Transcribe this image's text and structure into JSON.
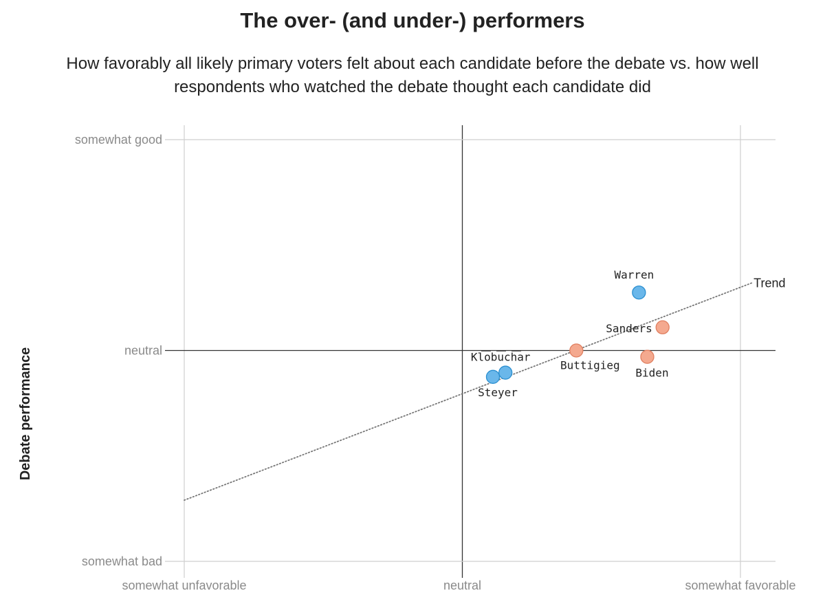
{
  "title": "The over- (and under-) performers",
  "subtitle": "How favorably all likely primary voters felt about each candidate before the debate vs. how well respondents who watched the debate thought each candidate did",
  "chart_data": {
    "type": "scatter",
    "title": "The over- (and under-) performers",
    "subtitle": "How favorably all likely primary voters felt about each candidate before the debate vs. how well respondents who watched the debate thought each candidate did",
    "xlabel": "",
    "ylabel": "Debate performance",
    "xlim": [
      -1.02,
      1.13
    ],
    "ylim": [
      -1.0,
      1.07
    ],
    "x_ticks": [
      {
        "value": -1,
        "label": "somewhat unfavorable"
      },
      {
        "value": 0,
        "label": "neutral"
      },
      {
        "value": 1,
        "label": "somewhat favorable"
      }
    ],
    "y_ticks": [
      {
        "value": -1,
        "label": "somewhat bad"
      },
      {
        "value": 0,
        "label": "neutral"
      },
      {
        "value": 1,
        "label": "somewhat good"
      }
    ],
    "grid": true,
    "points": [
      {
        "name": "Warren",
        "x": 0.635,
        "y": 0.275,
        "color": "#6ab7ea"
      },
      {
        "name": "Sanders",
        "x": 0.72,
        "y": 0.11,
        "color": "#f4a98f"
      },
      {
        "name": "Biden",
        "x": 0.665,
        "y": -0.03,
        "color": "#f4a98f"
      },
      {
        "name": "Buttigieg",
        "x": 0.41,
        "y": 0.0,
        "color": "#f4a98f"
      },
      {
        "name": "Klobuchar",
        "x": 0.155,
        "y": -0.105,
        "color": "#6ab7ea"
      },
      {
        "name": "Steyer",
        "x": 0.11,
        "y": -0.125,
        "color": "#6ab7ea"
      }
    ],
    "trend": {
      "label": "Trend",
      "x": [
        -1,
        1.04
      ],
      "y": [
        -0.71,
        0.32
      ]
    }
  }
}
